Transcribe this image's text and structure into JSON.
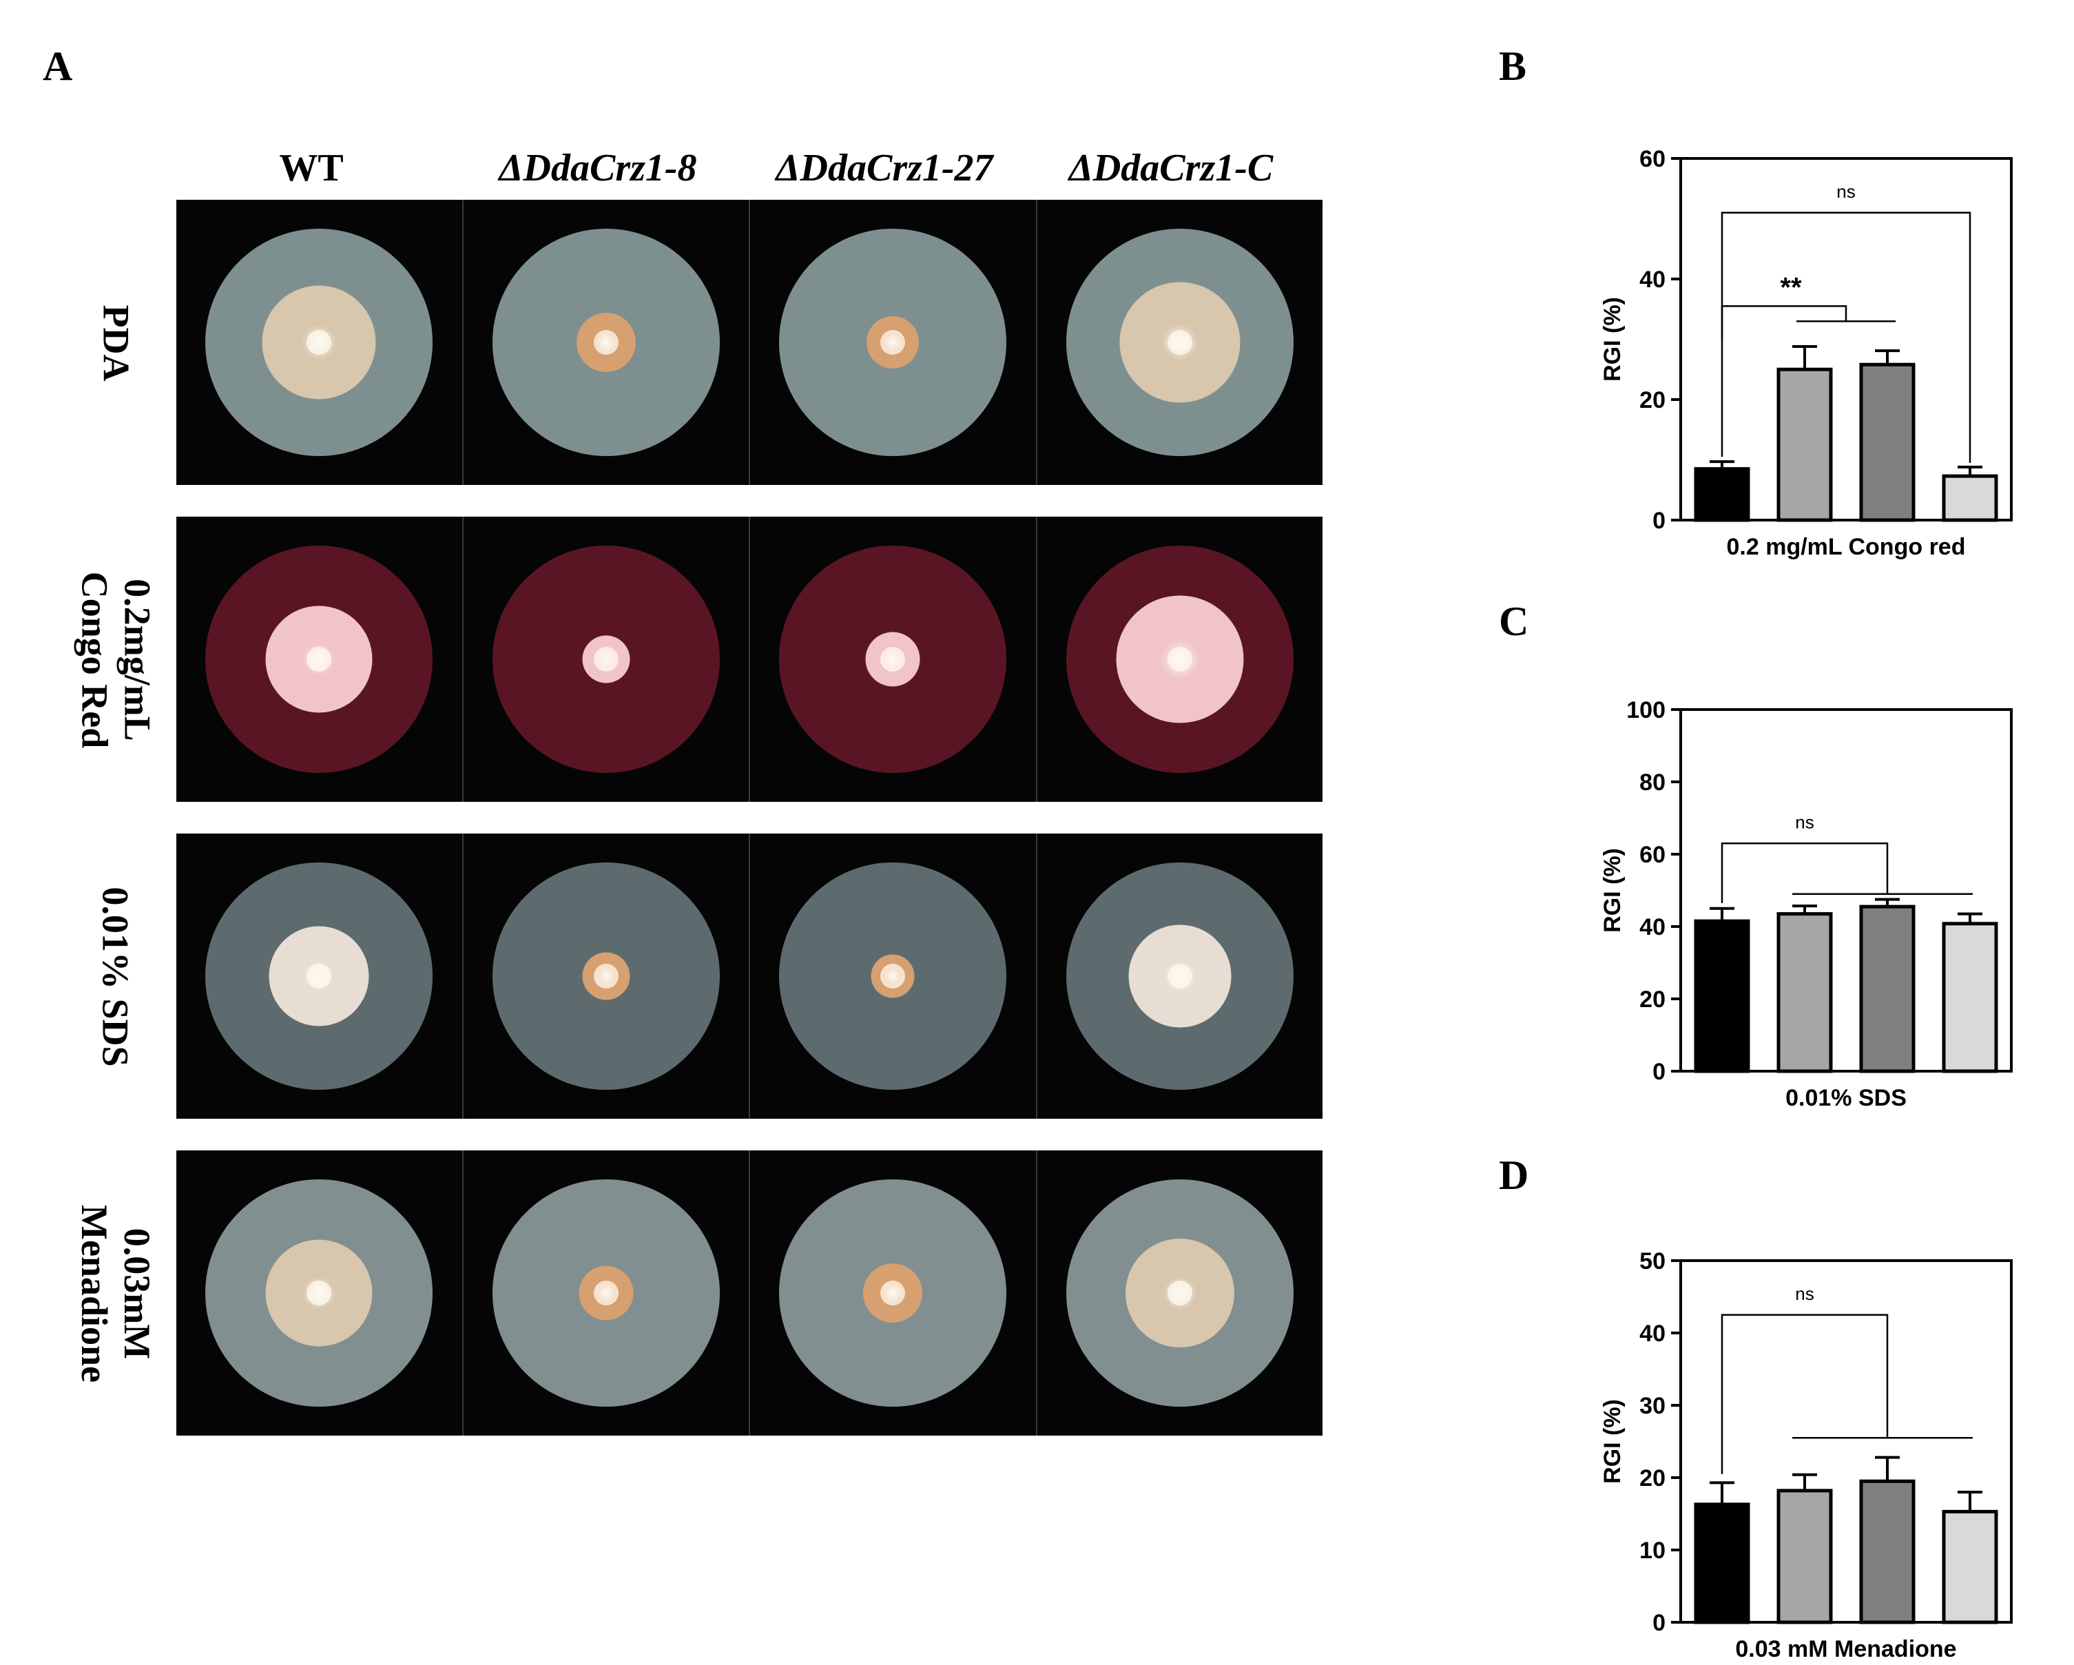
{
  "panels": {
    "a": "A",
    "b": "B",
    "c": "C",
    "d": "D"
  },
  "columns": [
    "WT",
    "ΔDdaCrz1-8",
    "ΔDdaCrz1-27",
    "ΔDdaCrz1-C"
  ],
  "rows": [
    {
      "label_lines": [
        "PDA"
      ],
      "medium": "pda"
    },
    {
      "label_lines": [
        "0.2mg/mL",
        "Congo Red"
      ],
      "medium": "congo"
    },
    {
      "label_lines": [
        "0.01% SDS"
      ],
      "medium": "sds"
    },
    {
      "label_lines": [
        "0.03mM",
        "Menadione"
      ],
      "medium": "menadione"
    }
  ],
  "colony_sizes": [
    [
      0.5,
      0.26,
      0.23,
      0.53
    ],
    [
      0.47,
      0.21,
      0.24,
      0.56
    ],
    [
      0.44,
      0.21,
      0.19,
      0.45
    ],
    [
      0.47,
      0.24,
      0.26,
      0.48
    ]
  ],
  "colors": {
    "bar_fills": [
      "#000000",
      "#a6a6a6",
      "#7f7f7f",
      "#d9d9d9"
    ],
    "pda_agar": "#7e8f8f",
    "congo_agar": "#5a1525",
    "sds_agar": "#5d6b6f",
    "menadione_agar": "#818f90",
    "colony_tan": "#d8c6ad",
    "colony_orange": "#d6a070",
    "colony_pink": "#f0c4c8"
  },
  "chart_data": [
    {
      "type": "bar",
      "panel": "B",
      "xlabel": "0.2 mg/mL Congo red",
      "ylabel": "RGI (%)",
      "ylim": [
        0,
        60
      ],
      "yticks": [
        0,
        20,
        40,
        60
      ],
      "values": [
        8.5,
        25.0,
        25.8,
        7.3
      ],
      "errors": [
        1.2,
        3.8,
        2.3,
        1.5
      ],
      "annotations": [
        {
          "text": "ns",
          "kind": "bracket",
          "from": 0,
          "to": 3,
          "y": 51,
          "drop_left": 30,
          "drop_right": 9.5
        },
        {
          "text": "**",
          "kind": "bracket_group",
          "from": 0,
          "group": [
            1,
            2
          ],
          "y": 35.5,
          "drop_left": 10.5,
          "drop_right": 32
        }
      ]
    },
    {
      "type": "bar",
      "panel": "C",
      "xlabel": "0.01% SDS",
      "ylabel": "RGI (%)",
      "ylim": [
        0,
        100
      ],
      "yticks": [
        0,
        20,
        40,
        60,
        80,
        100
      ],
      "values": [
        41.5,
        43.5,
        45.5,
        40.8
      ],
      "errors": [
        3.5,
        2.2,
        2.0,
        2.7
      ],
      "annotations": [
        {
          "text": "ns",
          "kind": "bracket_to_group",
          "from": 0,
          "to": 2,
          "group": [
            1,
            3
          ],
          "y": 63,
          "drop_left": 46.5,
          "drop_right": 49
        }
      ]
    },
    {
      "type": "bar",
      "panel": "D",
      "xlabel": "0.03 mM Menadione",
      "ylabel": "RGI (%)",
      "ylim": [
        0,
        50
      ],
      "yticks": [
        0,
        10,
        20,
        30,
        40,
        50
      ],
      "values": [
        16.3,
        18.2,
        19.5,
        15.3
      ],
      "errors": [
        3.0,
        2.2,
        3.3,
        2.7
      ],
      "annotations": [
        {
          "text": "ns",
          "kind": "bracket_to_group",
          "from": 0,
          "to": 2,
          "group": [
            1,
            3
          ],
          "y": 42.5,
          "drop_left": 20.5,
          "drop_right": 25.5
        }
      ]
    }
  ]
}
